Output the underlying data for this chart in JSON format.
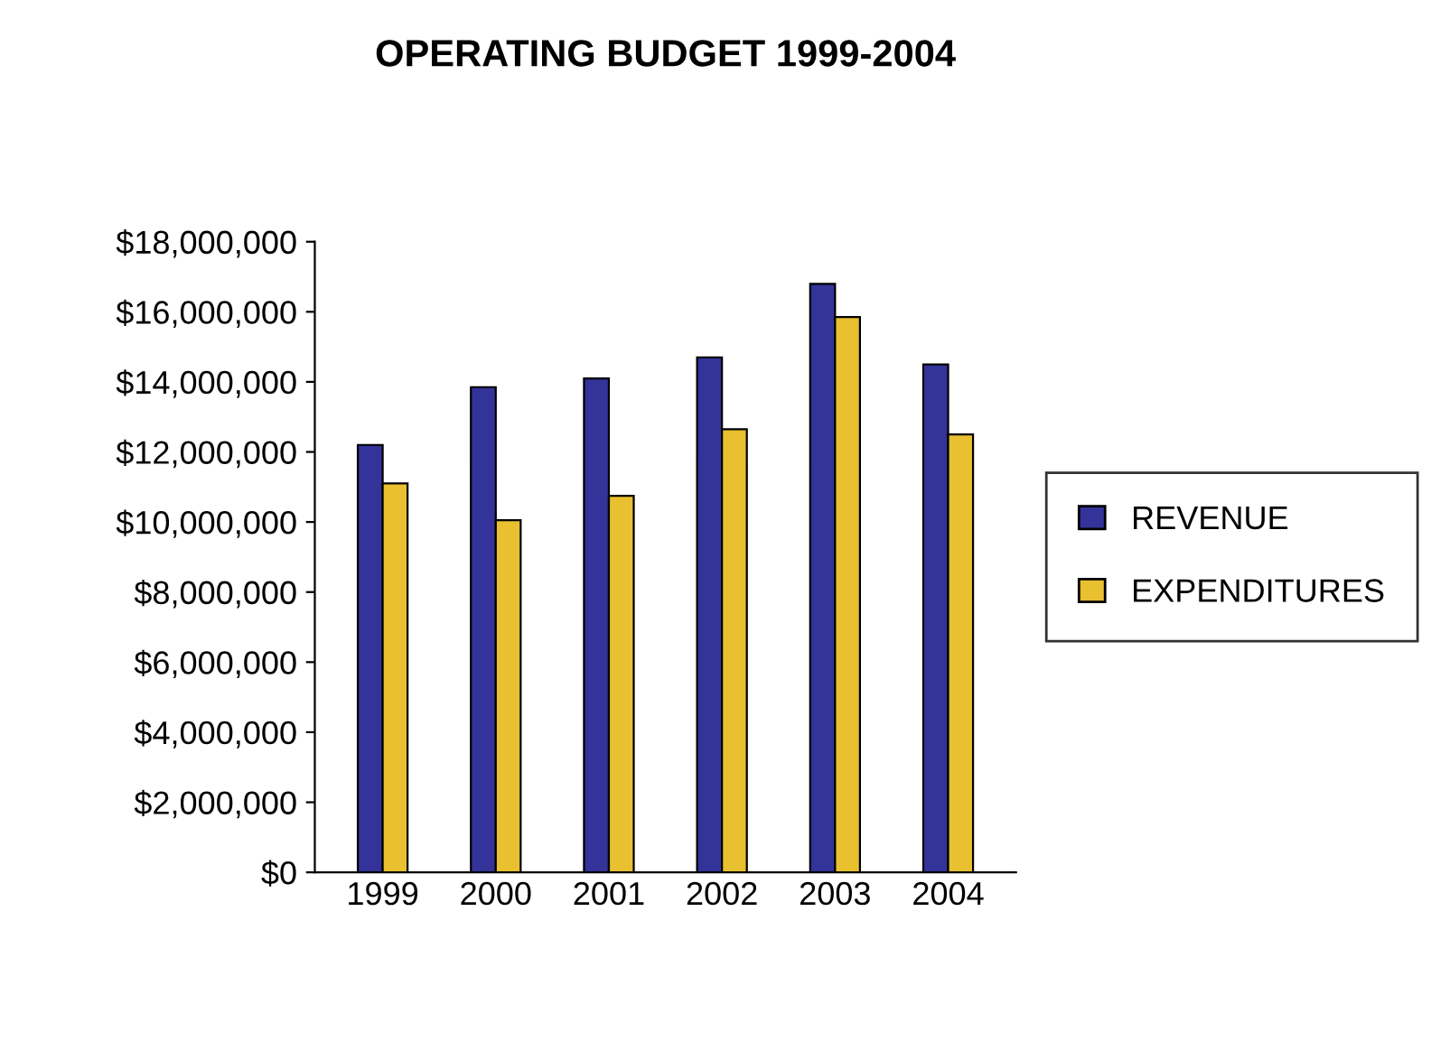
{
  "chart_data": {
    "type": "bar",
    "title": "OPERATING BUDGET 1999-2004",
    "categories": [
      "1999",
      "2000",
      "2001",
      "2002",
      "2003",
      "2004"
    ],
    "series": [
      {
        "name": "REVENUE",
        "color": "#333399",
        "values": [
          12200000,
          13850000,
          14100000,
          14700000,
          16800000,
          14500000
        ]
      },
      {
        "name": "EXPENDITURES",
        "color": "#e8c030",
        "values": [
          11100000,
          10050000,
          10750000,
          12650000,
          15850000,
          12500000
        ]
      }
    ],
    "ylim": [
      0,
      18000000
    ],
    "yticks": [
      {
        "value": 0,
        "label": "$0"
      },
      {
        "value": 2000000,
        "label": "$2,000,000"
      },
      {
        "value": 4000000,
        "label": "$4,000,000"
      },
      {
        "value": 6000000,
        "label": "$6,000,000"
      },
      {
        "value": 8000000,
        "label": "$8,000,000"
      },
      {
        "value": 10000000,
        "label": "$10,000,000"
      },
      {
        "value": 12000000,
        "label": "$12,000,000"
      },
      {
        "value": 14000000,
        "label": "$14,000,000"
      },
      {
        "value": 16000000,
        "label": "$16,000,000"
      },
      {
        "value": 18000000,
        "label": "$18,000,000"
      }
    ],
    "grid": false,
    "legend": "right"
  }
}
